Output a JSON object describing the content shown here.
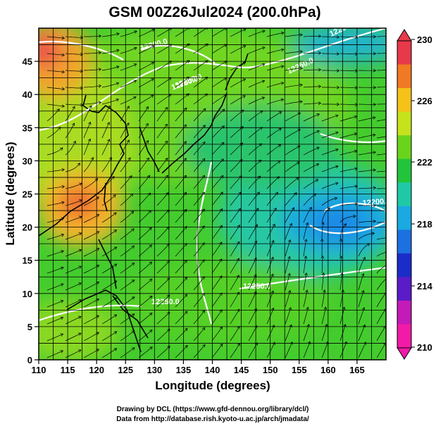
{
  "title": "GSM 00Z26Jul2024 (200.0hPa)",
  "axes": {
    "xlabel": "Longitude (degrees)",
    "ylabel": "Latitude  (degrees)",
    "x_ticks": [
      "110",
      "115",
      "120",
      "125",
      "130",
      "135",
      "140",
      "145",
      "150",
      "155",
      "160",
      "165"
    ],
    "y_ticks": [
      "0",
      "5",
      "10",
      "15",
      "20",
      "25",
      "30",
      "35",
      "40",
      "45"
    ]
  },
  "colorbar": {
    "labels": [
      "230",
      "226",
      "222",
      "218",
      "214",
      "210"
    ],
    "colors": [
      "#e8394a",
      "#f07a24",
      "#f5c21a",
      "#c6e21c",
      "#6ad41c",
      "#22c43c",
      "#1fc9a6",
      "#1aa9e0",
      "#1c70e0",
      "#1b2cc8",
      "#5a1bc8",
      "#c41ab8",
      "#f21aa6"
    ]
  },
  "contour_labels": [
    "12200.0",
    "12250.0",
    "12250.0",
    "12200.0",
    "12200.0",
    "12250.0",
    "12250.0",
    "12250.0"
  ],
  "credits": {
    "line1": "Drawing by DCL (https://www.gfd-dennou.org/library/dcl/)",
    "line2": "Data from http://database.rish.kyoto-u.ac.jp/arch/jmadata/"
  },
  "chart_data": {
    "type": "heatmap",
    "title": "GSM 00Z26Jul2024 (200.0hPa)",
    "xlabel": "Longitude (degrees)",
    "ylabel": "Latitude  (degrees)",
    "xlim": [
      110,
      170
    ],
    "ylim": [
      0,
      50
    ],
    "color_range": [
      210,
      230
    ],
    "colorbar_ticks": [
      230,
      226,
      222,
      218,
      214,
      210
    ],
    "grid": true,
    "temperature_features": [
      {
        "lon": 111,
        "lat": 46,
        "value": 229
      },
      {
        "lon": 117,
        "lat": 26,
        "value": 227
      },
      {
        "lon": 160,
        "lat": 23,
        "value": 217
      },
      {
        "lon": 163,
        "lat": 45,
        "value": 219
      },
      {
        "lon": 140,
        "lat": 10,
        "value": 222
      }
    ],
    "contour_levels": [
      12200.0,
      12250.0
    ]
  }
}
